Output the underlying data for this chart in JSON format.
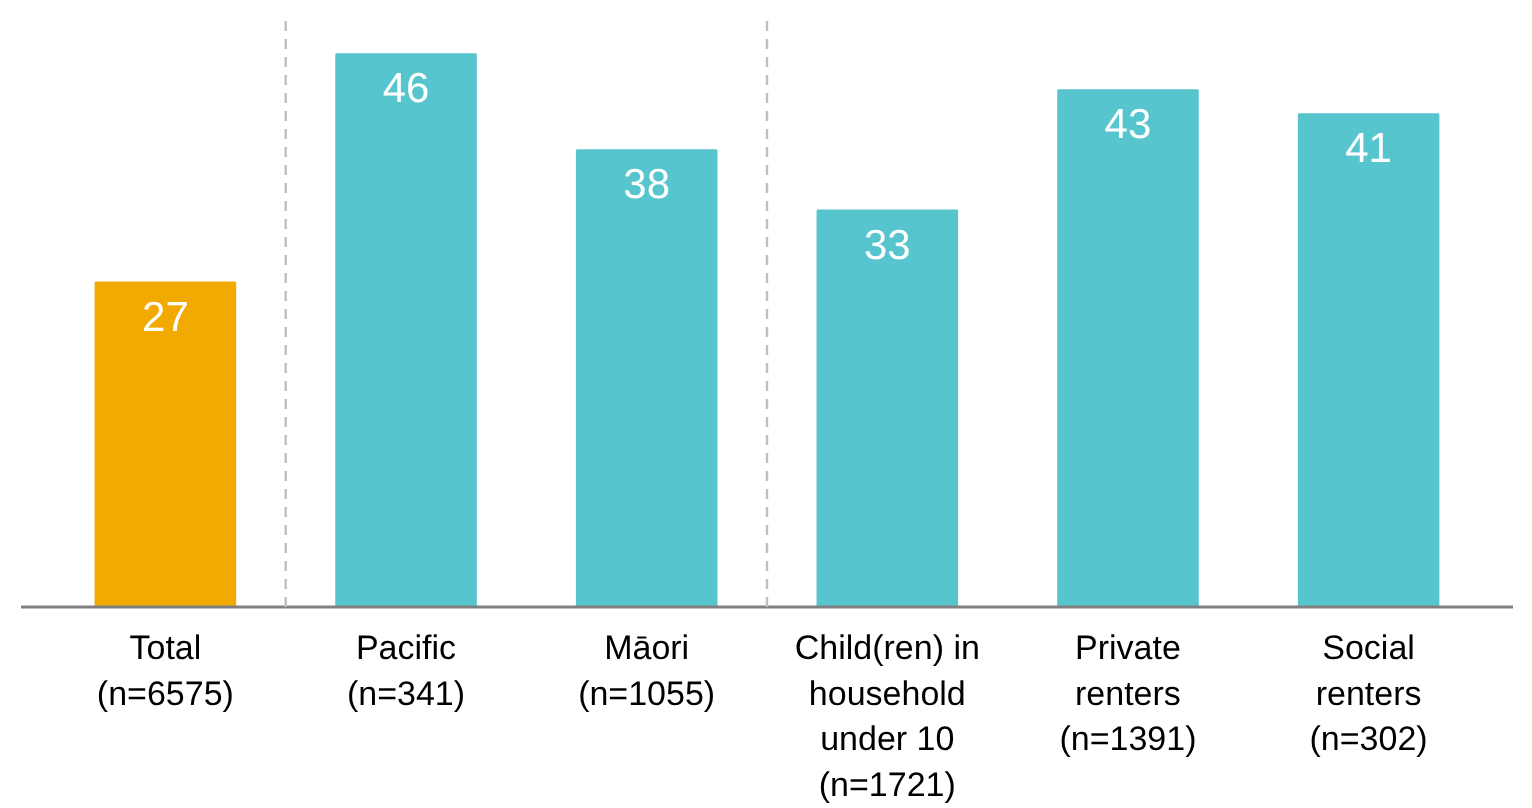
{
  "chart_data": {
    "type": "bar",
    "categories": [
      "Total\n(n=6575)",
      "Pacific\n(n=341)",
      "Māori\n(n=1055)",
      "Child(ren) in\nhousehold\nunder 10\n(n=1721)",
      "Private\nrenters\n(n=1391)",
      "Social\nrenters\n(n=302)"
    ],
    "values": [
      27,
      46,
      38,
      33,
      43,
      41
    ],
    "colors": [
      "#f2a900",
      "#56c5cd",
      "#56c5cd",
      "#56c5cd",
      "#56c5cd",
      "#56c5cd"
    ],
    "data_labels": true
  }
}
